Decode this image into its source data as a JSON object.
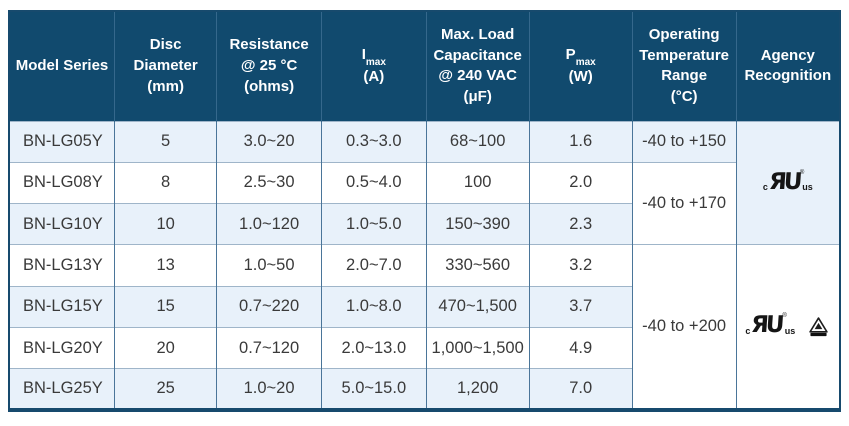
{
  "colors": {
    "header_navy": "#114a6e",
    "header_divider": "#35688c",
    "row_tint": "#e8f1fa",
    "grid_horizontal": "#9fb5c9",
    "grid_vertical": "#4a7599",
    "outer_border": "#174a6d",
    "text": "#3a3a3a"
  },
  "table": {
    "columns": {
      "model_series": "Model Series",
      "disc_diameter": "Disc\nDiameter\n(mm)",
      "resistance": "Resistance\n@ 25 °C\n(ohms)",
      "imax": {
        "base": "I",
        "sub": "max",
        "unit": "(A)"
      },
      "max_load_capacitance": "Max. Load\nCapacitance\n@ 240 VAC\n(μF)",
      "pmax": {
        "base": "P",
        "sub": "max",
        "unit": "(W)"
      },
      "operating_temperature": "Operating\nTemperature\nRange\n(°C)",
      "agency_recognition": "Agency\nRecognition"
    },
    "rows": [
      {
        "model": "BN-LG05Y",
        "disc_diameter": "5",
        "resistance": "3.0~20",
        "imax": "0.3~3.0",
        "max_load_capacitance": "68~100",
        "pmax": "1.6"
      },
      {
        "model": "BN-LG08Y",
        "disc_diameter": "8",
        "resistance": "2.5~30",
        "imax": "0.5~4.0",
        "max_load_capacitance": "100",
        "pmax": "2.0"
      },
      {
        "model": "BN-LG10Y",
        "disc_diameter": "10",
        "resistance": "1.0~120",
        "imax": "1.0~5.0",
        "max_load_capacitance": "150~390",
        "pmax": "2.3"
      },
      {
        "model": "BN-LG13Y",
        "disc_diameter": "13",
        "resistance": "1.0~50",
        "imax": "2.0~7.0",
        "max_load_capacitance": "330~560",
        "pmax": "3.2"
      },
      {
        "model": "BN-LG15Y",
        "disc_diameter": "15",
        "resistance": "0.7~220",
        "imax": "1.0~8.0",
        "max_load_capacitance": "470~1,500",
        "pmax": "3.7"
      },
      {
        "model": "BN-LG20Y",
        "disc_diameter": "20",
        "resistance": "0.7~120",
        "imax": "2.0~13.0",
        "max_load_capacitance": "1,000~1,500",
        "pmax": "4.9"
      },
      {
        "model": "BN-LG25Y",
        "disc_diameter": "25",
        "resistance": "1.0~20",
        "imax": "5.0~15.0",
        "max_load_capacitance": "1,200",
        "pmax": "7.0"
      }
    ],
    "temperature_cells": [
      {
        "row_start": 0,
        "row_span": 1,
        "value": "-40 to +150",
        "background": "tint"
      },
      {
        "row_start": 1,
        "row_span": 2,
        "value": "-40 to +170",
        "background": "white"
      },
      {
        "row_start": 3,
        "row_span": 4,
        "value": "-40 to +200",
        "background": "white"
      }
    ],
    "agency_cells": [
      {
        "row_start": 0,
        "row_span": 3,
        "background": "tint",
        "marks": [
          {
            "icon": "ul-cULus-recognized-mark-icon",
            "c": "c",
            "letters": "ЯU",
            "reg": "®",
            "us": "us"
          }
        ]
      },
      {
        "row_start": 3,
        "row_span": 4,
        "background": "white",
        "marks": [
          {
            "icon": "ul-cULus-recognized-mark-icon",
            "c": "c",
            "letters": "ЯU",
            "reg": "®",
            "us": "us"
          },
          {
            "icon": "triangle-certification-mark-icon"
          }
        ]
      }
    ]
  }
}
